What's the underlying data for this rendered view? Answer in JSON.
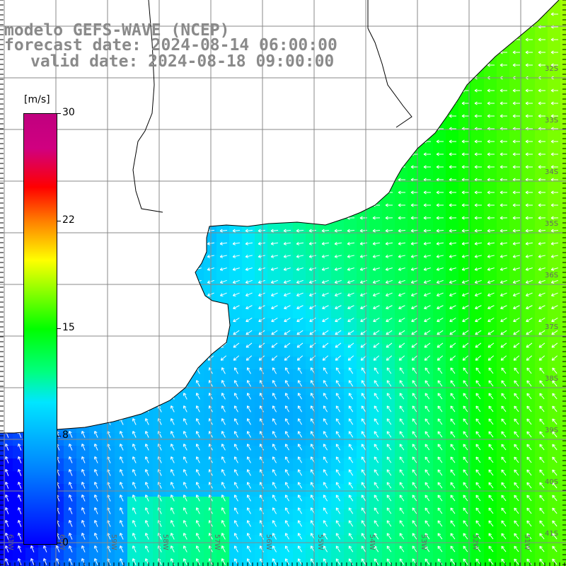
{
  "title": {
    "model": "modelo GEFS-WAVE (NCEP)",
    "forecast": "forecast date: 2024-08-14 06:00:00",
    "valid": "valid date: 2024-08-18 09:00:00"
  },
  "colorbar": {
    "unit": "[m/s]",
    "ticks": [
      "30",
      "22",
      "15",
      "8",
      "0"
    ],
    "colors": [
      "#0000ff",
      "#0080ff",
      "#00e6ff",
      "#00ff80",
      "#00ff00",
      "#80ff00",
      "#ffff00",
      "#ff8000",
      "#ff0000",
      "#c0007f"
    ]
  },
  "map": {
    "lat_labels": [
      "32S",
      "33S",
      "34S",
      "35S",
      "36S",
      "37S",
      "38S",
      "39S",
      "40S",
      "41S"
    ],
    "lon_labels": [
      "61W",
      "60W",
      "59W",
      "58W",
      "57W",
      "56W",
      "55W",
      "54W",
      "53W",
      "52W",
      "51W"
    ],
    "land_color": "#ffffff",
    "grid_color": "#888888",
    "arrow_color": "#ffffff"
  }
}
